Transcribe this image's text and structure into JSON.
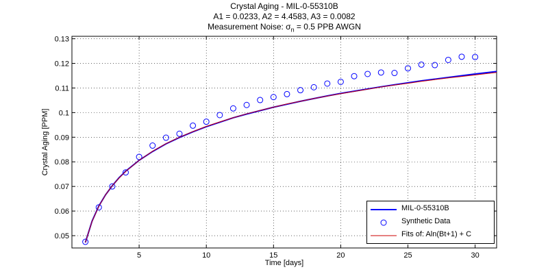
{
  "chart_data": {
    "type": "line",
    "title": "Crystal Aging - MIL-0-55310B",
    "subtitle_params": "A1 = 0.0233, A2 = 4.4583, A3 = 0.0082",
    "subtitle_noise_prefix": "Measurement Noise: σ",
    "subtitle_noise_sub": "n",
    "subtitle_noise_suffix": " = 0.5 PPB AWGN",
    "xlabel": "Time [days]",
    "ylabel": "Crystal Aging [PPM]",
    "xlim": [
      0,
      31.6
    ],
    "ylim": [
      0.045,
      0.131
    ],
    "xticks": [
      5,
      10,
      15,
      20,
      25,
      30
    ],
    "yticks": [
      0.05,
      0.06,
      0.07,
      0.08,
      0.09,
      0.1,
      0.11,
      0.12,
      0.13
    ],
    "ytick_labels": [
      "0.05",
      "0.06",
      "0.07",
      "0.08",
      "0.09",
      "0.1",
      "0.11",
      "0.12",
      "0.13"
    ],
    "grid": true,
    "legend_position": "bottom-right",
    "series": [
      {
        "name": "MIL-0-55310B",
        "kind": "line",
        "color": "#0000ff",
        "x": [
          1,
          1.5,
          2,
          2.5,
          3,
          3.5,
          4,
          5,
          6,
          7,
          8,
          9,
          10,
          11,
          12,
          13,
          14,
          15,
          16,
          17,
          18,
          19,
          20,
          21,
          22,
          23,
          24,
          25,
          26,
          27,
          28,
          29,
          30,
          31.6
        ],
        "values": [
          0.0472,
          0.0559,
          0.062,
          0.0666,
          0.0703,
          0.0735,
          0.0762,
          0.0806,
          0.0842,
          0.0873,
          0.0899,
          0.0922,
          0.0943,
          0.0961,
          0.0979,
          0.0994,
          0.1008,
          0.1022,
          0.1034,
          0.1046,
          0.1057,
          0.1068,
          0.1078,
          0.1087,
          0.1096,
          0.1105,
          0.1113,
          0.1121,
          0.1129,
          0.1136,
          0.1143,
          0.115,
          0.1157,
          0.1167
        ]
      },
      {
        "name": "Synthetic Data",
        "kind": "scatter",
        "color": "#0000ff",
        "x": [
          1,
          2,
          3,
          4,
          5,
          6,
          7,
          8,
          9,
          10,
          11,
          12,
          13,
          14,
          15,
          16,
          17,
          18,
          19,
          20,
          21,
          22,
          23,
          24,
          25,
          26,
          27,
          28,
          29,
          30
        ],
        "values": [
          0.0475,
          0.0615,
          0.07,
          0.0757,
          0.082,
          0.0866,
          0.0898,
          0.0914,
          0.0947,
          0.0963,
          0.099,
          0.1017,
          0.1031,
          0.1051,
          0.1063,
          0.1075,
          0.1091,
          0.1103,
          0.1118,
          0.1125,
          0.1148,
          0.1157,
          0.1163,
          0.1161,
          0.118,
          0.1195,
          0.1193,
          0.1214,
          0.1227,
          0.1226
        ]
      },
      {
        "name": "Fits of:  Aln(Bt+1) + C",
        "kind": "line",
        "color": "#cc0000",
        "x": [
          1,
          1.5,
          2,
          2.5,
          3,
          3.5,
          4,
          5,
          6,
          7,
          8,
          9,
          10,
          11,
          12,
          13,
          14,
          15,
          16,
          17,
          18,
          19,
          20,
          21,
          22,
          23,
          24,
          25,
          26,
          27,
          28,
          29,
          30,
          31.6
        ],
        "values": [
          0.0472,
          0.0558,
          0.0619,
          0.0666,
          0.0703,
          0.0734,
          0.0761,
          0.0806,
          0.0843,
          0.0874,
          0.09,
          0.0923,
          0.0944,
          0.0962,
          0.0979,
          0.0995,
          0.1009,
          0.1022,
          0.1035,
          0.1046,
          0.1057,
          0.1067,
          0.1077,
          0.1086,
          0.1095,
          0.1104,
          0.1112,
          0.1119,
          0.1127,
          0.1134,
          0.1141,
          0.1147,
          0.1153,
          0.1163
        ]
      }
    ]
  }
}
